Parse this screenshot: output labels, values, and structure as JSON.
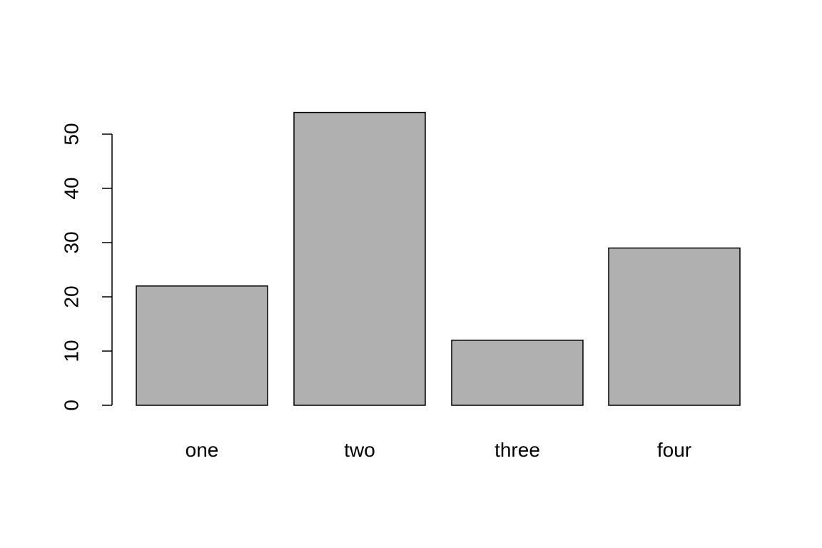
{
  "chart_data": {
    "type": "bar",
    "title": "",
    "xlabel": "",
    "ylabel": "",
    "categories": [
      "one",
      "two",
      "three",
      "four"
    ],
    "values": [
      22,
      54,
      12,
      29
    ],
    "ylim": [
      0,
      54
    ],
    "yticks": [
      0,
      10,
      20,
      30,
      40,
      50
    ],
    "ytick_labels": [
      "0",
      "10",
      "20",
      "30",
      "40",
      "50"
    ],
    "grid": false,
    "legend": "none",
    "bar_fill": "#b0b0b0",
    "bar_stroke": "#000000"
  }
}
